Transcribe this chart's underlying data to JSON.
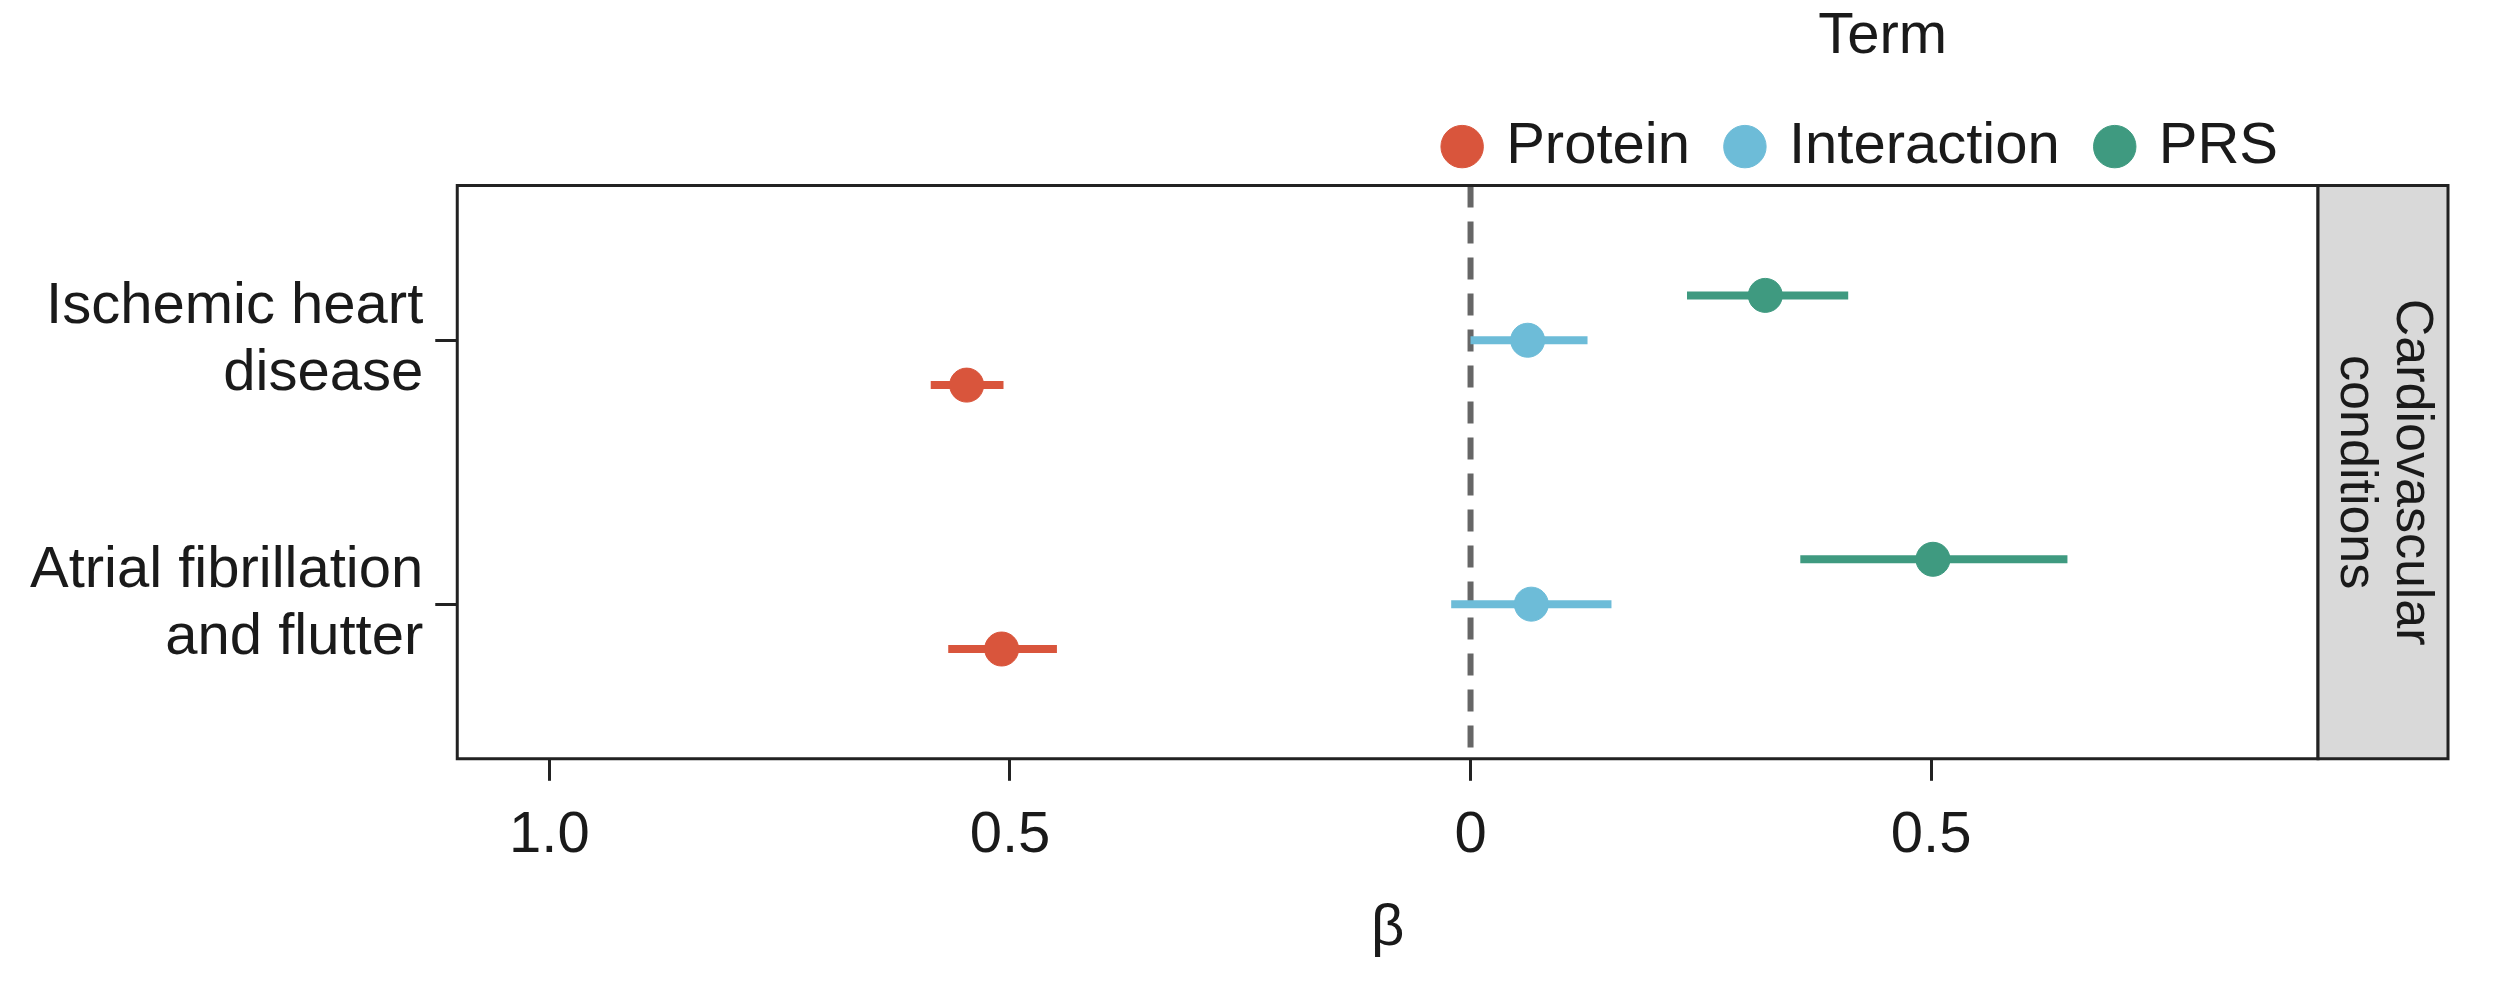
{
  "chart_data": {
    "type": "scatter",
    "orientation": "horizontal",
    "categories": [
      "Ischemic heart disease",
      "Atrial fibrillation and flutter"
    ],
    "series": [
      {
        "name": "Protein",
        "color": "#d9553c",
        "values": [
          -0.547,
          -0.509
        ],
        "errors": [
          [
            -0.586,
            -0.507
          ],
          [
            -0.567,
            -0.449
          ]
        ]
      },
      {
        "name": "Interaction",
        "color": "#6dbcd8",
        "values": [
          0.062,
          0.066
        ],
        "errors": [
          [
            0.0,
            0.127
          ],
          [
            -0.021,
            0.153
          ]
        ]
      },
      {
        "name": "PRS",
        "color": "#3f9a80",
        "values": [
          0.32,
          0.502
        ],
        "errors": [
          [
            0.235,
            0.41
          ],
          [
            0.358,
            0.648
          ]
        ]
      }
    ],
    "xlim": [
      -1.1,
      0.92
    ],
    "xticks": [
      {
        "value": -1,
        "label": "1.0"
      },
      {
        "value": -0.5,
        "label": "0.5"
      },
      0,
      0.5
    ],
    "xlabel": "β",
    "legend_title": "Term",
    "legend": "top",
    "grid": false,
    "marker": "circle",
    "ref_lines": [
      {
        "axis": "x",
        "value": 0,
        "color": "#666666",
        "line_style": "dashed"
      }
    ],
    "annotations": [
      "Cardiovascular conditions"
    ]
  }
}
